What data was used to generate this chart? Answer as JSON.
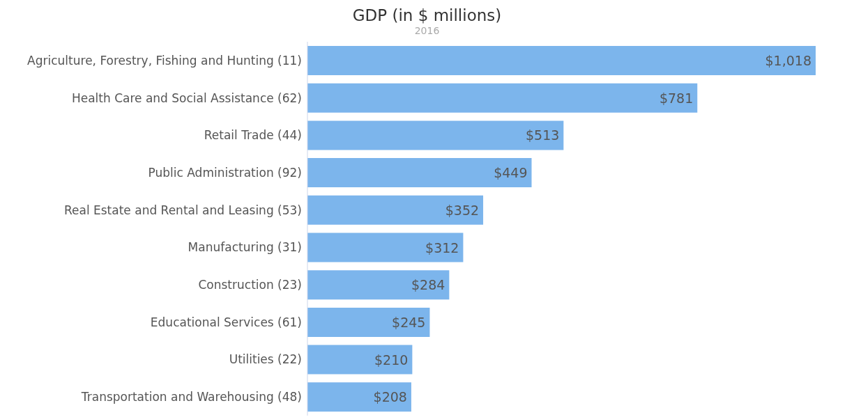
{
  "chart_data": {
    "type": "bar",
    "orientation": "horizontal",
    "title": "GDP (in $ millions)",
    "subtitle": "2016",
    "categories": [
      "Agriculture, Forestry, Fishing and Hunting (11)",
      "Health Care and Social Assistance (62)",
      "Retail Trade (44)",
      "Public Administration (92)",
      "Real Estate and Rental and Leasing (53)",
      "Manufacturing (31)",
      "Construction (23)",
      "Educational Services (61)",
      "Utilities (22)",
      "Transportation and Warehousing (48)"
    ],
    "values": [
      1018,
      781,
      513,
      449,
      352,
      312,
      284,
      245,
      210,
      208
    ],
    "value_labels": [
      "$1,018",
      "$781",
      "$513",
      "$449",
      "$352",
      "$312",
      "$284",
      "$245",
      "$210",
      "$208"
    ],
    "color": "#7cb5ec",
    "tick_labels": "y",
    "legend": false
  }
}
